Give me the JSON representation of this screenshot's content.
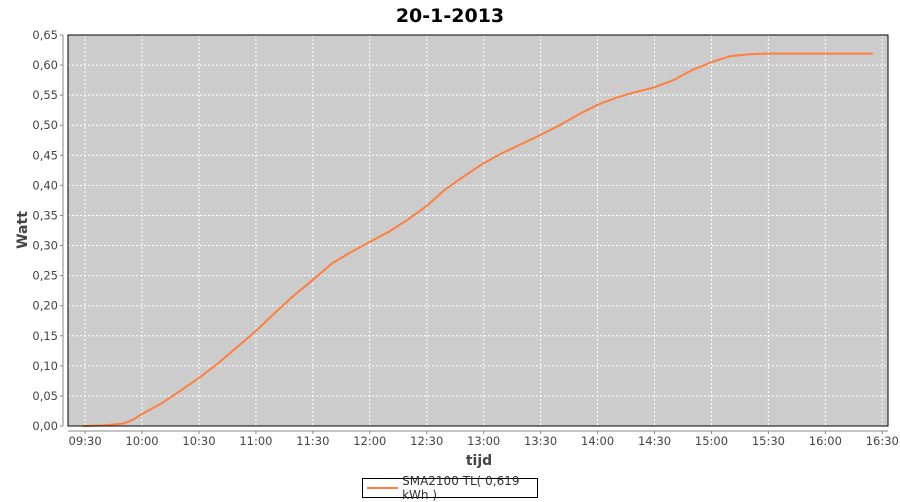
{
  "chart_data": {
    "type": "line",
    "title": "20-1-2013",
    "xlabel": "tijd",
    "ylabel": "Watt",
    "xlim": [
      "09:21",
      "16:33"
    ],
    "ylim": [
      0,
      0.65
    ],
    "x_ticks": [
      "09:30",
      "10:00",
      "10:30",
      "11:00",
      "11:30",
      "12:00",
      "12:30",
      "13:00",
      "13:30",
      "14:00",
      "14:30",
      "15:00",
      "15:30",
      "16:00",
      "16:30"
    ],
    "y_ticks": [
      "0,00",
      "0,05",
      "0,10",
      "0,15",
      "0,20",
      "0,25",
      "0,30",
      "0,35",
      "0,40",
      "0,45",
      "0,50",
      "0,55",
      "0,60",
      "0,65"
    ],
    "grid": true,
    "legend_position": "bottom",
    "series": [
      {
        "name": "SMA2100 TL( 0,619 kWh )",
        "color": "#ff7f3f",
        "x": [
          "09:29",
          "09:40",
          "09:50",
          "09:55",
          "10:00",
          "10:10",
          "10:20",
          "10:30",
          "10:40",
          "10:50",
          "11:00",
          "11:10",
          "11:20",
          "11:30",
          "11:40",
          "11:50",
          "12:00",
          "12:10",
          "12:20",
          "12:30",
          "12:40",
          "12:50",
          "13:00",
          "13:10",
          "13:20",
          "13:30",
          "13:40",
          "13:50",
          "14:00",
          "14:10",
          "14:20",
          "14:30",
          "14:40",
          "14:50",
          "15:00",
          "15:10",
          "15:20",
          "15:30",
          "16:25"
        ],
        "y": [
          0.0,
          0.001,
          0.004,
          0.01,
          0.02,
          0.037,
          0.058,
          0.08,
          0.104,
          0.131,
          0.158,
          0.188,
          0.217,
          0.243,
          0.27,
          0.289,
          0.306,
          0.323,
          0.343,
          0.366,
          0.394,
          0.416,
          0.437,
          0.454,
          0.469,
          0.484,
          0.5,
          0.518,
          0.534,
          0.546,
          0.555,
          0.563,
          0.575,
          0.592,
          0.605,
          0.615,
          0.618,
          0.619,
          0.619
        ]
      }
    ],
    "colors": {
      "plot_background": "#cccccc",
      "gridline": "#ffffff",
      "text": "#444444"
    }
  }
}
